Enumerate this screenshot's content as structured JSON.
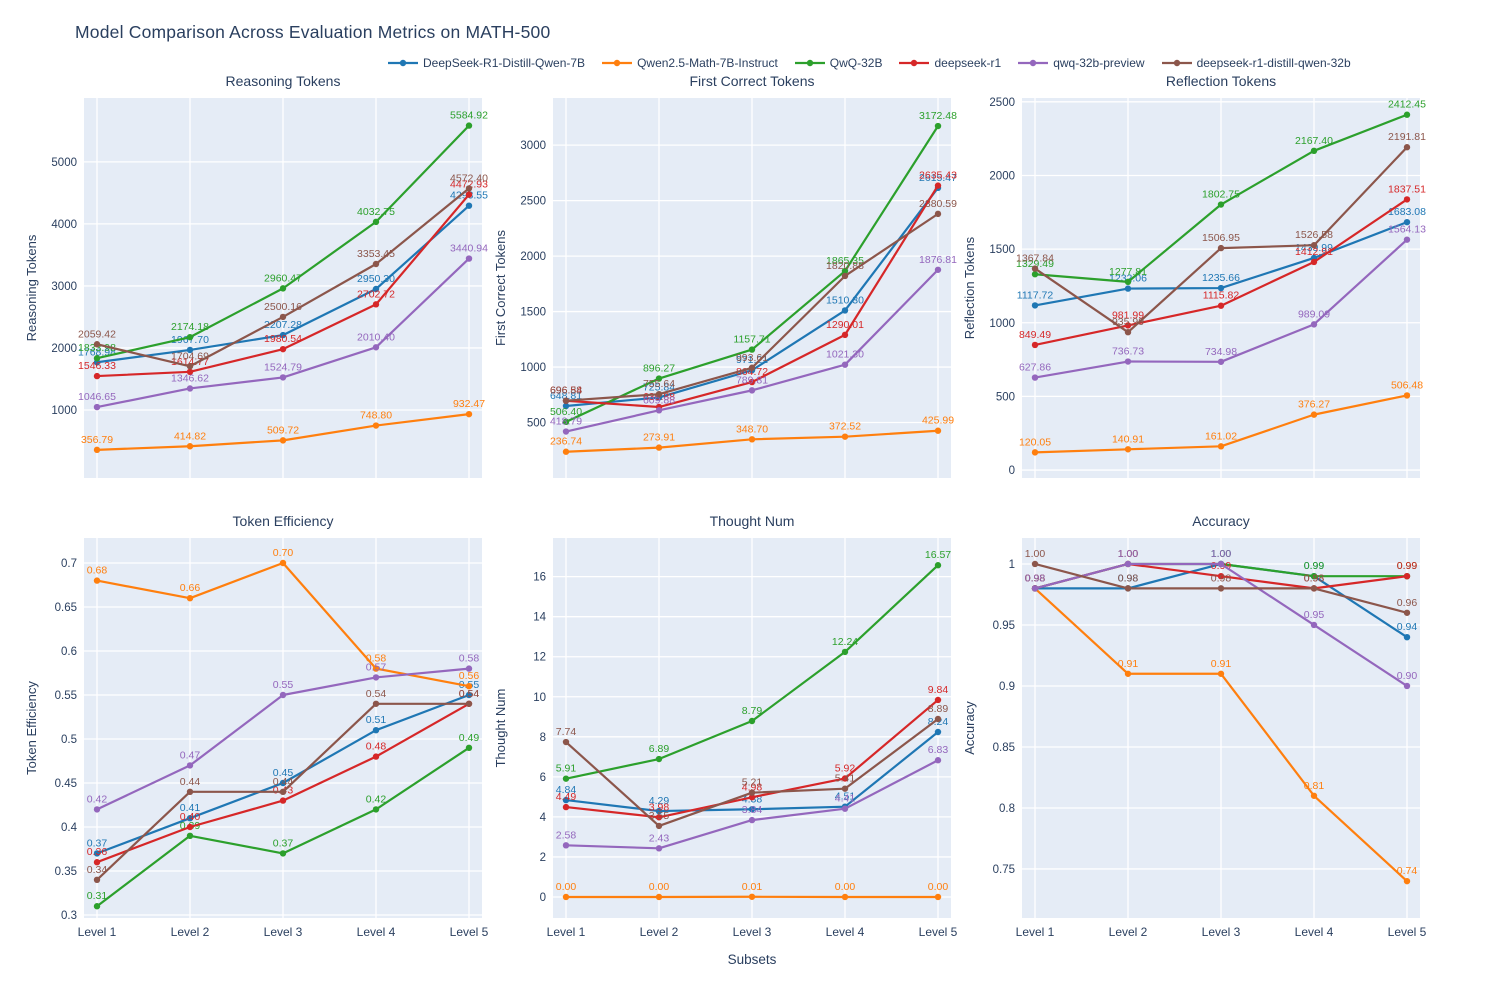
{
  "title": "Model Comparison Across Evaluation Metrics on MATH-500",
  "xlabel": "Subsets",
  "plot_bg": "#e5ecf6",
  "grid_color": "#ffffff",
  "text_color": "#2a3f5f",
  "categories": [
    "Level 1",
    "Level 2",
    "Level 3",
    "Level 4",
    "Level 5"
  ],
  "models": [
    {
      "name": "DeepSeek-R1-Distill-Qwen-7B",
      "color": "#1f77b4"
    },
    {
      "name": "Qwen2.5-Math-7B-Instruct",
      "color": "#ff7f0e"
    },
    {
      "name": "QwQ-32B",
      "color": "#2ca02c"
    },
    {
      "name": "deepseek-r1",
      "color": "#d62728"
    },
    {
      "name": "qwq-32b-preview",
      "color": "#9467bd"
    },
    {
      "name": "deepseek-r1-distill-qwen-32b",
      "color": "#8c564b"
    }
  ],
  "chart_data": [
    {
      "type": "line",
      "title": "Reasoning Tokens",
      "ylabel": "Reasoning Tokens",
      "yticks": [
        1000,
        2000,
        3000,
        4000,
        5000
      ],
      "ylim": [
        -97,
        6030
      ],
      "grid": true,
      "legend_position": "top-center",
      "series": [
        {
          "name": "DeepSeek-R1-Distill-Qwen-7B",
          "values": [
            1768.98,
            1967.7,
            2207.28,
            2950.3,
            4293.55
          ]
        },
        {
          "name": "Qwen2.5-Math-7B-Instruct",
          "values": [
            356.79,
            414.82,
            509.72,
            748.8,
            932.47
          ]
        },
        {
          "name": "QwQ-32B",
          "values": [
            1833.98,
            2174.18,
            2960.47,
            4032.75,
            5584.92
          ]
        },
        {
          "name": "deepseek-r1",
          "values": [
            1546.33,
            1614.77,
            1980.54,
            2702.72,
            4472.93
          ]
        },
        {
          "name": "qwq-32b-preview",
          "values": [
            1046.65,
            1346.62,
            1524.79,
            2010.4,
            3440.94
          ]
        },
        {
          "name": "deepseek-r1-distill-qwen-32b",
          "values": [
            2059.42,
            1704.69,
            2500.16,
            3353.45,
            4572.4
          ]
        }
      ]
    },
    {
      "type": "line",
      "title": "First Correct Tokens",
      "ylabel": "First Correct Tokens",
      "yticks": [
        500,
        1000,
        1500,
        2000,
        2500,
        3000
      ],
      "ylim": [
        0,
        3425
      ],
      "grid": true,
      "series": [
        {
          "name": "DeepSeek-R1-Distill-Qwen-7B",
          "values": [
            648.81,
            725.84,
            971.21,
            1510.3,
            2615.47
          ]
        },
        {
          "name": "Qwen2.5-Math-7B-Instruct",
          "values": [
            236.74,
            273.91,
            348.7,
            372.52,
            425.99
          ]
        },
        {
          "name": "QwQ-32B",
          "values": [
            506.4,
            896.27,
            1157.71,
            1865.35,
            3172.48
          ]
        },
        {
          "name": "deepseek-r1",
          "values": [
            696.54,
            639.88,
            864.72,
            1290.01,
            2635.43
          ]
        },
        {
          "name": "qwq-32b-preview",
          "values": [
            418.79,
            609.88,
            789.81,
            1021.3,
            1876.81
          ]
        },
        {
          "name": "deepseek-r1-distill-qwen-32b",
          "values": [
            696.88,
            755.64,
            993.61,
            1820.88,
            2380.59
          ]
        }
      ]
    },
    {
      "type": "line",
      "title": "Reflection Tokens",
      "ylabel": "Reflection Tokens",
      "yticks": [
        0,
        500,
        1000,
        1500,
        2000,
        2500
      ],
      "ylim": [
        -54,
        2526
      ],
      "grid": true,
      "series": [
        {
          "name": "DeepSeek-R1-Distill-Qwen-7B",
          "values": [
            1117.72,
            1232.06,
            1235.66,
            1439.99,
            1683.08
          ]
        },
        {
          "name": "Qwen2.5-Math-7B-Instruct",
          "values": [
            120.05,
            140.91,
            161.02,
            376.27,
            506.48
          ]
        },
        {
          "name": "QwQ-32B",
          "values": [
            1329.49,
            1277.81,
            1802.75,
            2167.4,
            2412.45
          ]
        },
        {
          "name": "deepseek-r1",
          "values": [
            849.49,
            981.99,
            1115.82,
            1412.91,
            1837.51
          ]
        },
        {
          "name": "qwq-32b-preview",
          "values": [
            627.86,
            736.73,
            734.98,
            989.09,
            1564.13
          ]
        },
        {
          "name": "deepseek-r1-distill-qwen-32b",
          "values": [
            1367.84,
            935.99,
            1506.95,
            1526.58,
            2191.81
          ]
        }
      ]
    },
    {
      "type": "line",
      "title": "Token Efficiency",
      "ylabel": "Token Efficiency",
      "yticks": [
        0.3,
        0.35,
        0.4,
        0.45,
        0.5,
        0.55,
        0.6,
        0.65,
        0.7
      ],
      "ylim": [
        0.2966,
        0.7284
      ],
      "grid": true,
      "series": [
        {
          "name": "DeepSeek-R1-Distill-Qwen-7B",
          "values": [
            0.37,
            0.41,
            0.45,
            0.51,
            0.55
          ]
        },
        {
          "name": "Qwen2.5-Math-7B-Instruct",
          "values": [
            0.68,
            0.66,
            0.7,
            0.58,
            0.56
          ]
        },
        {
          "name": "QwQ-32B",
          "values": [
            0.31,
            0.39,
            0.37,
            0.42,
            0.49
          ]
        },
        {
          "name": "deepseek-r1",
          "values": [
            0.36,
            0.4,
            0.43,
            0.48,
            0.54
          ]
        },
        {
          "name": "qwq-32b-preview",
          "values": [
            0.42,
            0.47,
            0.55,
            0.57,
            0.58
          ]
        },
        {
          "name": "deepseek-r1-distill-qwen-32b",
          "values": [
            0.34,
            0.44,
            0.44,
            0.54,
            0.54
          ]
        }
      ]
    },
    {
      "type": "line",
      "title": "Thought Num",
      "ylabel": "Thought Num",
      "yticks": [
        0,
        2,
        4,
        6,
        8,
        10,
        12,
        14,
        16
      ],
      "ylim": [
        -1.05,
        17.93
      ],
      "grid": true,
      "series": [
        {
          "name": "DeepSeek-R1-Distill-Qwen-7B",
          "values": [
            4.84,
            4.29,
            4.38,
            4.51,
            8.24
          ]
        },
        {
          "name": "Qwen2.5-Math-7B-Instruct",
          "values": [
            0.0,
            0.0,
            0.01,
            0.0,
            0.0
          ]
        },
        {
          "name": "QwQ-32B",
          "values": [
            5.91,
            6.89,
            8.79,
            12.24,
            16.57
          ]
        },
        {
          "name": "deepseek-r1",
          "values": [
            4.49,
            3.98,
            4.98,
            5.92,
            9.84
          ]
        },
        {
          "name": "qwq-32b-preview",
          "values": [
            2.58,
            2.43,
            3.84,
            4.41,
            6.83
          ]
        },
        {
          "name": "deepseek-r1-distill-qwen-32b",
          "values": [
            7.74,
            3.55,
            5.21,
            5.41,
            8.89
          ]
        }
      ]
    },
    {
      "type": "line",
      "title": "Accuracy",
      "ylabel": "Accuracy",
      "yticks": [
        0.75,
        0.8,
        0.85,
        0.9,
        0.95,
        1
      ],
      "ylim": [
        0.7098,
        1.0213
      ],
      "grid": true,
      "series": [
        {
          "name": "DeepSeek-R1-Distill-Qwen-7B",
          "values": [
            0.98,
            0.98,
            1.0,
            0.99,
            0.94
          ]
        },
        {
          "name": "Qwen2.5-Math-7B-Instruct",
          "values": [
            0.98,
            0.91,
            0.91,
            0.81,
            0.74
          ]
        },
        {
          "name": "QwQ-32B",
          "values": [
            0.98,
            1.0,
            1.0,
            0.99,
            0.99
          ]
        },
        {
          "name": "deepseek-r1",
          "values": [
            0.98,
            1.0,
            0.99,
            0.98,
            0.99
          ]
        },
        {
          "name": "qwq-32b-preview",
          "values": [
            0.98,
            1.0,
            1.0,
            0.95,
            0.9
          ]
        },
        {
          "name": "deepseek-r1-distill-qwen-32b",
          "values": [
            1.0,
            0.98,
            0.98,
            0.98,
            0.96
          ]
        }
      ]
    }
  ]
}
